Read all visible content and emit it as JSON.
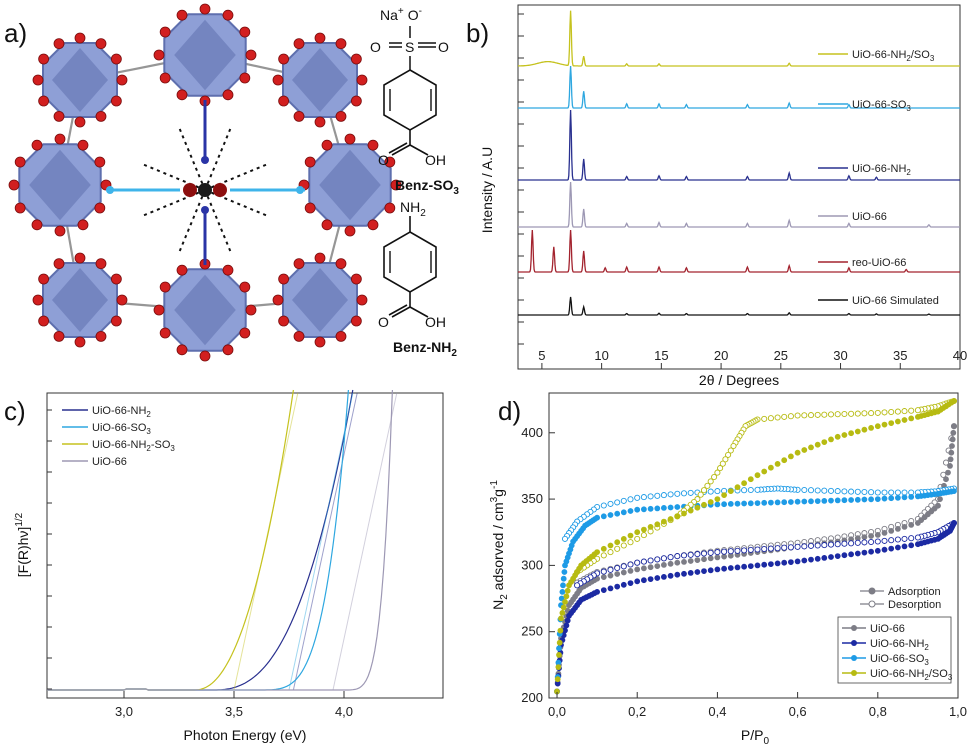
{
  "panels": {
    "a": "a)",
    "b": "b)",
    "c": "c)",
    "d": "d)"
  },
  "structure": {
    "sulfonate_label": "Benz-SO",
    "sulfonate_sub": "3",
    "amine_label": "Benz-NH",
    "amine_sub": "2",
    "na_label": "Na",
    "na_sup": "+",
    "o_minus": "O",
    "o_minus_sup": "-",
    "s_atom": "S",
    "o_atom": "O",
    "oh": "OH",
    "nh2": "NH",
    "nh2_sub": "2",
    "colors": {
      "node": "#8e9fd6",
      "node_dark": "#5e6fae",
      "oxygen": "#d21f1f",
      "linker": "#6a6a6a",
      "so3": "#3fb4ea",
      "nh2": "#2a34a6"
    }
  },
  "chart_data": [
    {
      "id": "b",
      "type": "line",
      "xlabel": "2θ / Degrees",
      "ylabel": "Intensity / A.U",
      "xlim": [
        3,
        40
      ],
      "xticks": [
        "5",
        "10",
        "15",
        "20",
        "25",
        "30",
        "35",
        "40"
      ],
      "series": [
        {
          "name": "UiO-66 Simulated",
          "color": "#111111",
          "peaks": [
            [
              7.4,
              1.0
            ],
            [
              8.5,
              0.45
            ],
            [
              12.1,
              0.08
            ],
            [
              14.8,
              0.1
            ],
            [
              17.1,
              0.08
            ],
            [
              22.2,
              0.08
            ],
            [
              25.7,
              0.12
            ],
            [
              30.7,
              0.08
            ],
            [
              33.0,
              0.06
            ],
            [
              37.4,
              0.05
            ]
          ]
        },
        {
          "name": "reo-UiO-66",
          "color": "#a3232e",
          "peaks": [
            [
              4.2,
              1.0
            ],
            [
              6.0,
              0.6
            ],
            [
              7.4,
              1.0
            ],
            [
              8.5,
              0.5
            ],
            [
              10.3,
              0.1
            ],
            [
              12.1,
              0.12
            ],
            [
              14.8,
              0.12
            ],
            [
              17.1,
              0.1
            ],
            [
              22.2,
              0.12
            ],
            [
              25.7,
              0.15
            ],
            [
              30.7,
              0.1
            ],
            [
              35.5,
              0.06
            ]
          ]
        },
        {
          "name": "UiO-66",
          "color": "#9d98b4",
          "peaks": [
            [
              7.4,
              1.0
            ],
            [
              8.5,
              0.4
            ],
            [
              12.1,
              0.08
            ],
            [
              14.8,
              0.1
            ],
            [
              17.1,
              0.08
            ],
            [
              22.2,
              0.08
            ],
            [
              25.7,
              0.15
            ],
            [
              30.7,
              0.08
            ],
            [
              37.4,
              0.05
            ]
          ]
        },
        {
          "name": "UiO-66-NH",
          "sub": "2",
          "color": "#29308f",
          "peaks": [
            [
              7.4,
              1.0
            ],
            [
              8.5,
              0.3
            ],
            [
              12.1,
              0.05
            ],
            [
              14.8,
              0.06
            ],
            [
              17.1,
              0.05
            ],
            [
              22.2,
              0.05
            ],
            [
              25.7,
              0.1
            ],
            [
              30.7,
              0.06
            ],
            [
              33.0,
              0.04
            ]
          ]
        },
        {
          "name": "UiO-66-SO",
          "sub": "3",
          "color": "#2ea7e0",
          "peaks": [
            [
              7.4,
              1.0
            ],
            [
              8.5,
              0.4
            ],
            [
              12.1,
              0.1
            ],
            [
              14.8,
              0.1
            ],
            [
              17.1,
              0.08
            ],
            [
              22.2,
              0.08
            ],
            [
              25.7,
              0.12
            ],
            [
              30.7,
              0.08
            ]
          ]
        },
        {
          "name": "UiO-66-NH",
          "sub": "2",
          "tail": "/SO",
          "sub2": "3",
          "color": "#c5c21e",
          "peaks": [
            [
              7.4,
              1.0
            ],
            [
              8.5,
              0.18
            ],
            [
              12.1,
              0.04
            ],
            [
              14.8,
              0.04
            ],
            [
              25.7,
              0.05
            ]
          ]
        }
      ]
    },
    {
      "id": "c",
      "type": "line",
      "xlabel": "Photon Energy (eV)",
      "ylabel": "[F(R)hν]",
      "ylabel_sup": "1/2",
      "xlim": [
        2.65,
        4.45
      ],
      "xticks": [
        "3,0",
        "3,5",
        "4,0"
      ],
      "series": [
        {
          "name": "UiO-66-NH",
          "sub": "2",
          "color": "#29308f",
          "onset": 3.4,
          "top": 4.04
        },
        {
          "name": "UiO-66-SO",
          "sub": "3",
          "color": "#2ea7e0",
          "onset": 3.6,
          "top": 4.02
        },
        {
          "name": "UiO-66-NH",
          "sub": "2",
          "tail": "-SO",
          "sub2": "3",
          "color": "#c5c21e",
          "onset": 3.32,
          "top": 3.77
        },
        {
          "name": "UiO-66",
          "color": "#9d98b4",
          "onset": 3.98,
          "top": 4.22
        }
      ]
    },
    {
      "id": "d",
      "type": "scatter",
      "xlabel": "P/P",
      "xlabel_sub": "0",
      "ylabel": "N",
      "ylabel_parts": [
        "2",
        " adsorved / cm",
        "3",
        "g",
        "-1"
      ],
      "xlim": [
        -0.02,
        1.0
      ],
      "ylim": [
        200,
        430
      ],
      "xticks": [
        "0,0",
        "0,2",
        "0,4",
        "0,6",
        "0,8",
        "1,0"
      ],
      "yticks": [
        "200",
        "250",
        "300",
        "350",
        "400"
      ],
      "legend_marker": [
        {
          "name": "Adsorption",
          "filled": true
        },
        {
          "name": "Desorption",
          "filled": false
        }
      ],
      "series": [
        {
          "name": "UiO-66",
          "color": "#7d7d86",
          "ads": [
            [
              0.0,
              205
            ],
            [
              0.01,
              245
            ],
            [
              0.03,
              270
            ],
            [
              0.06,
              283
            ],
            [
              0.1,
              290
            ],
            [
              0.2,
              297
            ],
            [
              0.3,
              302
            ],
            [
              0.4,
              306
            ],
            [
              0.5,
              310
            ],
            [
              0.6,
              314
            ],
            [
              0.7,
              318
            ],
            [
              0.8,
              323
            ],
            [
              0.9,
              332
            ],
            [
              0.95,
              345
            ],
            [
              0.98,
              375
            ],
            [
              0.99,
              405
            ]
          ],
          "des": [
            [
              0.99,
              405
            ],
            [
              0.95,
              350
            ],
            [
              0.9,
              335
            ],
            [
              0.8,
              326
            ],
            [
              0.7,
              321
            ],
            [
              0.6,
              317
            ],
            [
              0.5,
              314
            ],
            [
              0.4,
              311
            ],
            [
              0.3,
              307
            ],
            [
              0.2,
              302
            ],
            [
              0.1,
              295
            ],
            [
              0.05,
              287
            ]
          ]
        },
        {
          "name": "UiO-66-NH",
          "sub": "2",
          "color": "#1c2aa3",
          "ads": [
            [
              0.0,
              205
            ],
            [
              0.01,
              240
            ],
            [
              0.03,
              262
            ],
            [
              0.06,
              274
            ],
            [
              0.1,
              280
            ],
            [
              0.2,
              288
            ],
            [
              0.3,
              293
            ],
            [
              0.4,
              297
            ],
            [
              0.5,
              300
            ],
            [
              0.6,
              303
            ],
            [
              0.7,
              307
            ],
            [
              0.8,
              311
            ],
            [
              0.9,
              316
            ],
            [
              0.95,
              320
            ],
            [
              0.98,
              326
            ],
            [
              0.99,
              332
            ]
          ],
          "des": [
            [
              0.99,
              332
            ],
            [
              0.95,
              325
            ],
            [
              0.9,
              321
            ],
            [
              0.8,
              318
            ],
            [
              0.7,
              316
            ],
            [
              0.6,
              314
            ],
            [
              0.5,
              312
            ],
            [
              0.4,
              310
            ],
            [
              0.3,
              307
            ],
            [
              0.2,
              302
            ],
            [
              0.1,
              294
            ],
            [
              0.05,
              285
            ]
          ]
        },
        {
          "name": "UiO-66-SO",
          "sub": "3",
          "color": "#1e9be6",
          "ads": [
            [
              0.0,
              205
            ],
            [
              0.01,
              270
            ],
            [
              0.02,
              300
            ],
            [
              0.04,
              318
            ],
            [
              0.07,
              330
            ],
            [
              0.1,
              336
            ],
            [
              0.2,
              342
            ],
            [
              0.3,
              344
            ],
            [
              0.4,
              346
            ],
            [
              0.5,
              347
            ],
            [
              0.6,
              348
            ],
            [
              0.7,
              349
            ],
            [
              0.8,
              350
            ],
            [
              0.9,
              352
            ],
            [
              0.95,
              354
            ],
            [
              0.99,
              356
            ]
          ],
          "des": [
            [
              0.99,
              358
            ],
            [
              0.95,
              356
            ],
            [
              0.9,
              355
            ],
            [
              0.8,
              355
            ],
            [
              0.7,
              356
            ],
            [
              0.6,
              357
            ],
            [
              0.55,
              358
            ],
            [
              0.5,
              357
            ],
            [
              0.4,
              356
            ],
            [
              0.3,
              354
            ],
            [
              0.2,
              351
            ],
            [
              0.1,
              344
            ],
            [
              0.05,
              333
            ],
            [
              0.02,
              320
            ]
          ]
        },
        {
          "name": "UiO-66-NH",
          "sub": "2",
          "tail": "/SO",
          "sub2": "3",
          "color": "#b7bb12",
          "ads": [
            [
              0.0,
              205
            ],
            [
              0.01,
              260
            ],
            [
              0.03,
              285
            ],
            [
              0.06,
              300
            ],
            [
              0.1,
              310
            ],
            [
              0.2,
              325
            ],
            [
              0.3,
              337
            ],
            [
              0.4,
              350
            ],
            [
              0.5,
              368
            ],
            [
              0.6,
              385
            ],
            [
              0.7,
              397
            ],
            [
              0.8,
              405
            ],
            [
              0.9,
              412
            ],
            [
              0.95,
              416
            ],
            [
              0.99,
              424
            ]
          ],
          "des": [
            [
              0.99,
              424
            ],
            [
              0.95,
              420
            ],
            [
              0.9,
              417
            ],
            [
              0.8,
              415
            ],
            [
              0.7,
              414
            ],
            [
              0.6,
              413
            ],
            [
              0.5,
              410
            ],
            [
              0.47,
              405
            ],
            [
              0.44,
              390
            ],
            [
              0.4,
              370
            ],
            [
              0.35,
              350
            ],
            [
              0.3,
              337
            ],
            [
              0.2,
              320
            ],
            [
              0.1,
              305
            ],
            [
              0.05,
              295
            ]
          ]
        }
      ]
    }
  ]
}
